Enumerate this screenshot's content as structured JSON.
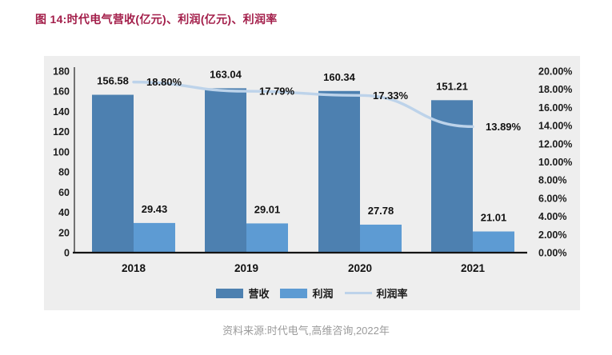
{
  "title": "图 14:时代电气营收(亿元)、利润(亿元)、利润率",
  "source": "资料来源:时代电气,高维咨询,2022年",
  "colors": {
    "title_text": "#a31e4a",
    "panel_bg": "#eeeeee",
    "revenue_bar": "#4d80b0",
    "profit_bar": "#5d9bd3",
    "rate_line": "#bdd3ea",
    "axis_line": "#3c3c3c",
    "baseline": "#141414",
    "label_text": "#111111",
    "source_text": "#9b9b9b"
  },
  "chart_data": {
    "type": "bar",
    "subtype": "combo-bar-line",
    "title": "图 14:时代电气营收(亿元)、利润(亿元)、利润率",
    "categories": [
      "2018",
      "2019",
      "2020",
      "2021"
    ],
    "series": [
      {
        "name": "营收",
        "type": "bar",
        "color": "#4d80b0",
        "axis": "left",
        "values": [
          156.58,
          163.04,
          160.34,
          151.21
        ],
        "labels": [
          "156.58",
          "163.04",
          "160.34",
          "151.21"
        ]
      },
      {
        "name": "利润",
        "type": "bar",
        "color": "#5d9bd3",
        "axis": "left",
        "values": [
          29.43,
          29.01,
          27.78,
          21.01
        ],
        "labels": [
          "29.43",
          "29.01",
          "27.78",
          "21.01"
        ]
      },
      {
        "name": "利润率",
        "type": "line",
        "color": "#bdd3ea",
        "axis": "right",
        "values": [
          18.8,
          17.79,
          17.33,
          13.89
        ],
        "labels": [
          "18.80%",
          "17.79%",
          "17.33%",
          "13.89%"
        ]
      }
    ],
    "left_axis": {
      "min": 0,
      "max": 180,
      "ticks": [
        "0",
        "20",
        "40",
        "60",
        "80",
        "100",
        "120",
        "140",
        "160",
        "180"
      ]
    },
    "right_axis": {
      "min": 0,
      "max": 20,
      "ticks": [
        "0.00%",
        "2.00%",
        "4.00%",
        "6.00%",
        "8.00%",
        "10.00%",
        "12.00%",
        "14.00%",
        "16.00%",
        "18.00%",
        "20.00%"
      ]
    },
    "grid": false,
    "legend_position": "bottom"
  }
}
